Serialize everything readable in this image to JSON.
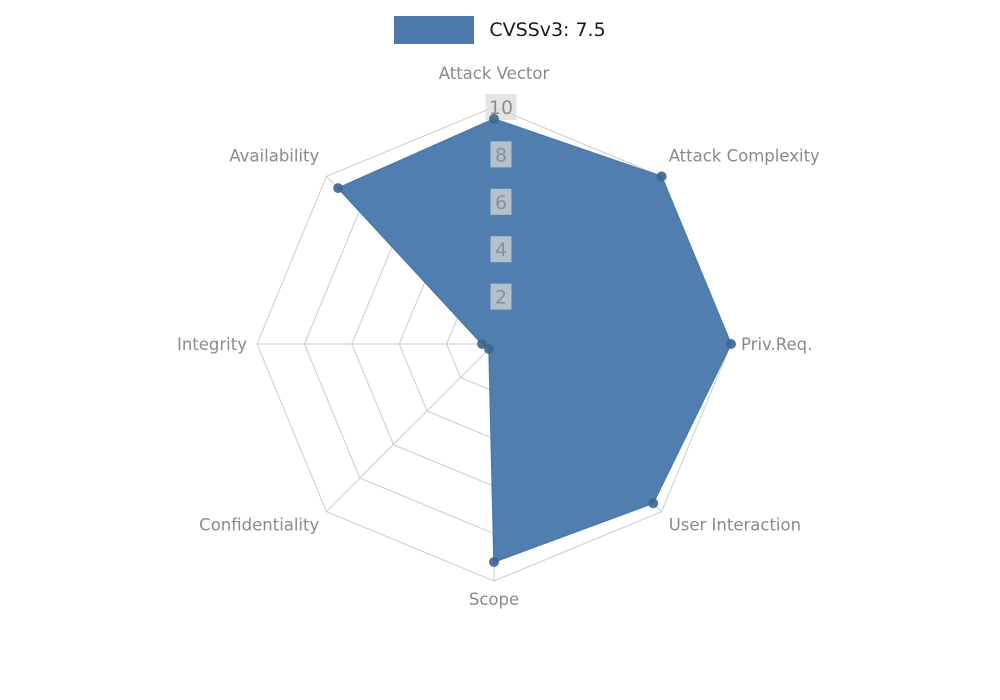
{
  "chart_data": {
    "type": "radar",
    "title": "",
    "legend_label": "CVSSv3: 7.5",
    "categories": [
      "Attack Vector",
      "Attack Complexity",
      "Priv.Req.",
      "User Interaction",
      "Scope",
      "Confidentiality",
      "Integrity",
      "Availability"
    ],
    "series": [
      {
        "name": "CVSSv3: 7.5",
        "color": "#4a7aab",
        "values": [
          9.5,
          10,
          10,
          9.5,
          9.2,
          0.3,
          0.5,
          9.3
        ]
      }
    ],
    "rticks": [
      2,
      4,
      6,
      8,
      10
    ],
    "rmax": 10,
    "grid_shape": "polygon",
    "legend_position": "top-center",
    "colors": {
      "fill": "#4a7aab",
      "marker": "#3c6690",
      "grid": "#cccccc",
      "axis_label": "#8a8a8a",
      "tick_label": "#8f8f8f",
      "tick_box": "#d9d9d9",
      "legend_text": "#1a1a1a",
      "background": "#ffffff"
    }
  }
}
